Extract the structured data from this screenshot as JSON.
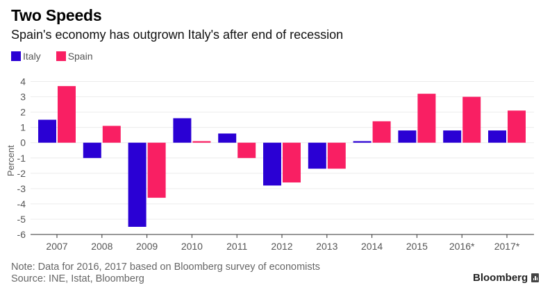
{
  "header": {
    "title": "Two Speeds",
    "subtitle": "Spain's economy has outgrown Italy's after end of recession"
  },
  "footer": {
    "note": "Note: Data for 2016, 2017 based on Bloomberg survey of economists",
    "source": "Source: INE, Istat, Bloomberg",
    "brand": "Bloomberg",
    "brand_icon": "bar-chart-icon"
  },
  "chart_data": {
    "type": "bar",
    "title": "Two Speeds",
    "subtitle": "Spain's economy has outgrown Italy's after end of recession",
    "xlabel": "",
    "ylabel": "Percent",
    "ylim": [
      -6,
      4
    ],
    "yticks": [
      4,
      3,
      2,
      1,
      0,
      -1,
      -2,
      -3,
      -4,
      -5,
      -6
    ],
    "grid": true,
    "legend_position": "top-left",
    "categories": [
      "2007",
      "2008",
      "2009",
      "2010",
      "2011",
      "2012",
      "2013",
      "2014",
      "2015",
      "2016*",
      "2017*"
    ],
    "series": [
      {
        "name": "Italy",
        "color": "#2a00d4",
        "values": [
          1.5,
          -1.0,
          -5.5,
          1.6,
          0.6,
          -2.8,
          -1.7,
          0.1,
          0.8,
          0.8,
          0.8
        ]
      },
      {
        "name": "Spain",
        "color": "#f91f63",
        "values": [
          3.7,
          1.1,
          -3.6,
          0.1,
          -1.0,
          -2.6,
          -1.7,
          1.4,
          3.2,
          3.0,
          2.1
        ]
      }
    ]
  }
}
